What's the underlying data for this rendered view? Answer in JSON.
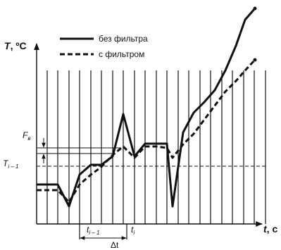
{
  "y_axis_label": {
    "main": "T",
    "rest": ", ºC"
  },
  "x_axis_label": {
    "main": "t",
    "rest": ", с"
  },
  "legend": [
    "без фильтра",
    "с фильтром"
  ],
  "filter_band": {
    "main": "F",
    "sub": "в"
  },
  "previous_value": {
    "main": "T",
    "sub": "i – 1"
  },
  "time_prev": {
    "main": "t",
    "sub": "i – 1"
  },
  "time_curr": {
    "main": "t",
    "sub": "i"
  },
  "time_step": "Δt"
}
